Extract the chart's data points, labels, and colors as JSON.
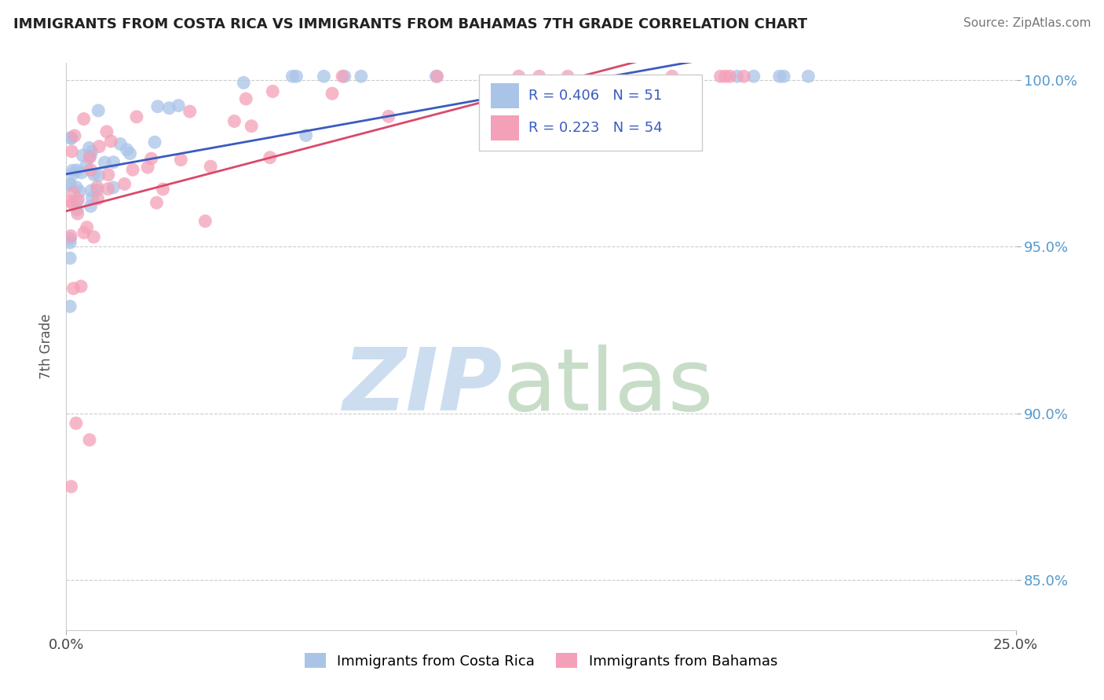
{
  "title": "IMMIGRANTS FROM COSTA RICA VS IMMIGRANTS FROM BAHAMAS 7TH GRADE CORRELATION CHART",
  "source": "Source: ZipAtlas.com",
  "ylabel_label": "7th Grade",
  "legend_label1": "Immigrants from Costa Rica",
  "legend_label2": "Immigrants from Bahamas",
  "R1": 0.406,
  "N1": 51,
  "R2": 0.223,
  "N2": 54,
  "color1": "#aac4e8",
  "color2": "#f4a0b8",
  "line_color1": "#3a5bbf",
  "line_color2": "#d9496a",
  "xlim": [
    0.0,
    0.25
  ],
  "ylim": [
    0.835,
    1.005
  ],
  "yticks": [
    0.85,
    0.9,
    0.95,
    1.0
  ],
  "ytick_labels": [
    "85.0%",
    "90.0%",
    "95.0%",
    "100.0%"
  ],
  "xticks": [
    0.0,
    0.25
  ],
  "xtick_labels": [
    "0.0%",
    "25.0%"
  ],
  "grid_color": "#cccccc",
  "background_color": "#ffffff",
  "tick_color": "#5599cc",
  "watermark_zip_color": "#ccddf0",
  "watermark_atlas_color": "#c8ddc8"
}
